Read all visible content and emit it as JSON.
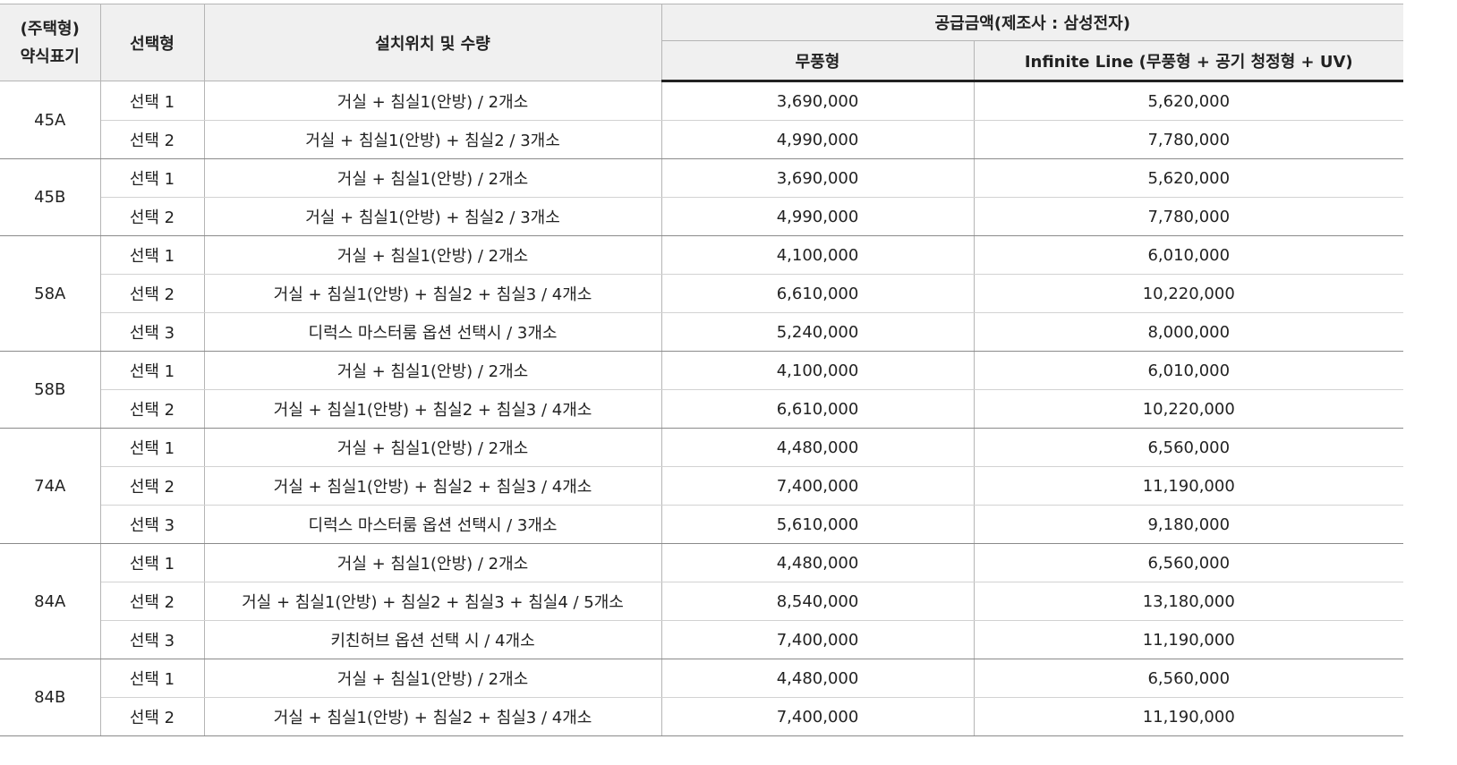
{
  "header": {
    "type_col_line1": "(주택형)",
    "type_col_line2": "약식표기",
    "option_col": "선택형",
    "location_col": "설치위치 및 수량",
    "price_group": "공급금액(제조사 : 삼성전자)",
    "price_plain": "무풍형",
    "price_premium": "Infinite Line (무풍형  +  공기 청정형  + UV)"
  },
  "groups": [
    {
      "type": "45A",
      "rows": [
        {
          "option": "선택 1",
          "location": "거실  +  침실1(안방) / 2개소",
          "price_plain": "3,690,000",
          "price_premium": "5,620,000"
        },
        {
          "option": "선택 2",
          "location": "거실  +  침실1(안방)  +  침실2 / 3개소",
          "price_plain": "4,990,000",
          "price_premium": "7,780,000"
        }
      ]
    },
    {
      "type": "45B",
      "rows": [
        {
          "option": "선택 1",
          "location": "거실  +  침실1(안방) / 2개소",
          "price_plain": "3,690,000",
          "price_premium": "5,620,000"
        },
        {
          "option": "선택 2",
          "location": "거실  +  침실1(안방)  +  침실2 / 3개소",
          "price_plain": "4,990,000",
          "price_premium": "7,780,000"
        }
      ]
    },
    {
      "type": "58A",
      "rows": [
        {
          "option": "선택 1",
          "location": "거실  +  침실1(안방) / 2개소",
          "price_plain": "4,100,000",
          "price_premium": "6,010,000"
        },
        {
          "option": "선택 2",
          "location": "거실  +  침실1(안방)  +  침실2  +  침실3 / 4개소",
          "price_plain": "6,610,000",
          "price_premium": "10,220,000"
        },
        {
          "option": "선택 3",
          "location": "디럭스  마스터룸  옵션  선택시 / 3개소",
          "price_plain": "5,240,000",
          "price_premium": "8,000,000"
        }
      ]
    },
    {
      "type": "58B",
      "rows": [
        {
          "option": "선택 1",
          "location": "거실  +  침실1(안방) / 2개소",
          "price_plain": "4,100,000",
          "price_premium": "6,010,000"
        },
        {
          "option": "선택 2",
          "location": "거실  +  침실1(안방)  +  침실2  +  침실3 / 4개소",
          "price_plain": "6,610,000",
          "price_premium": "10,220,000"
        }
      ]
    },
    {
      "type": "74A",
      "rows": [
        {
          "option": "선택 1",
          "location": "거실  +  침실1(안방) / 2개소",
          "price_plain": "4,480,000",
          "price_premium": "6,560,000"
        },
        {
          "option": "선택 2",
          "location": "거실  +  침실1(안방)  +  침실2  +  침실3 / 4개소",
          "price_plain": "7,400,000",
          "price_premium": "11,190,000"
        },
        {
          "option": "선택 3",
          "location": "디럭스  마스터룸  옵션  선택시 / 3개소",
          "price_plain": "5,610,000",
          "price_premium": "9,180,000"
        }
      ]
    },
    {
      "type": "84A",
      "rows": [
        {
          "option": "선택 1",
          "location": "거실  +  침실1(안방) / 2개소",
          "price_plain": "4,480,000",
          "price_premium": "6,560,000"
        },
        {
          "option": "선택 2",
          "location": "거실  +  침실1(안방)  +  침실2  +  침실3  +  침실4 / 5개소",
          "price_plain": "8,540,000",
          "price_premium": "13,180,000"
        },
        {
          "option": "선택 3",
          "location": "키친허브  옵션  선택  시  / 4개소",
          "price_plain": "7,400,000",
          "price_premium": "11,190,000"
        }
      ]
    },
    {
      "type": "84B",
      "rows": [
        {
          "option": "선택 1",
          "location": "거실  +  침실1(안방) / 2개소",
          "price_plain": "4,480,000",
          "price_premium": "6,560,000"
        },
        {
          "option": "선택 2",
          "location": "거실  +  침실1(안방)  +  침실2  +  침실3 / 4개소",
          "price_plain": "7,400,000",
          "price_premium": "11,190,000"
        }
      ]
    }
  ]
}
